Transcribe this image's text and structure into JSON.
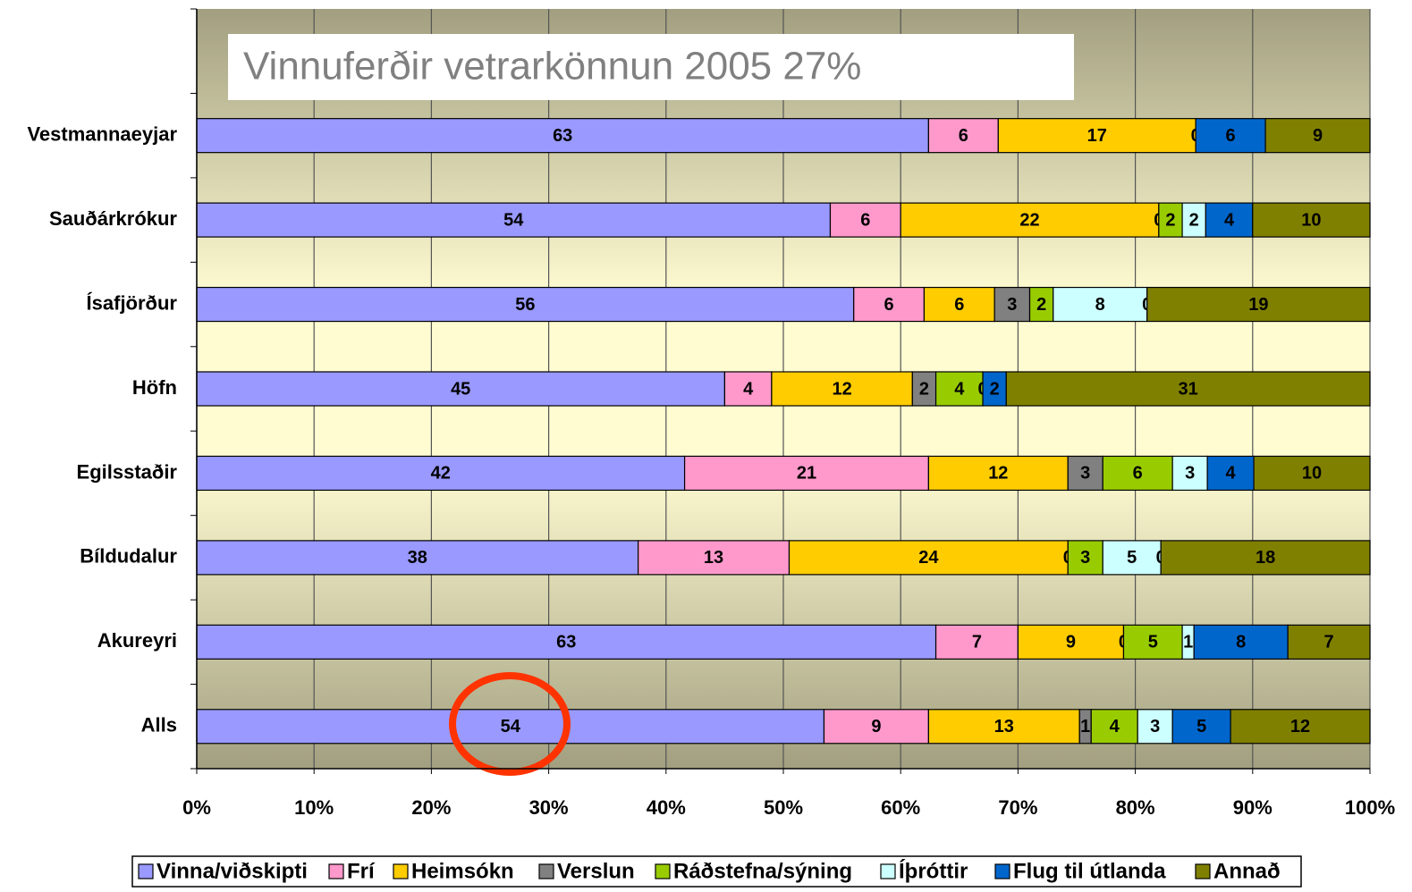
{
  "chart_data": {
    "type": "bar",
    "orientation": "horizontal",
    "stack": "percent",
    "title": "Vinnuferðir vetrarkönnun 2005 27%",
    "categories": [
      "Vestmannaeyjar",
      "Sauðárkrókur",
      "Ísafjörður",
      "Höfn",
      "Egilsstaðir",
      "Bíldudalur",
      "Akureyri",
      "Alls"
    ],
    "series": [
      {
        "name": "Vinna/viðskipti",
        "color": "#9999ff",
        "values": [
          63,
          54,
          56,
          45,
          42,
          38,
          63,
          54
        ]
      },
      {
        "name": "Frí",
        "color": "#ff99cc",
        "values": [
          6,
          6,
          6,
          4,
          21,
          13,
          7,
          9
        ]
      },
      {
        "name": "Heimsókn",
        "color": "#ffcc00",
        "values": [
          17,
          22,
          6,
          12,
          12,
          24,
          9,
          13
        ]
      },
      {
        "name": "Verslun",
        "color": "#808080",
        "values": [
          null,
          0,
          3,
          2,
          3,
          0,
          0,
          1
        ]
      },
      {
        "name": "Ráðstefna/sýning",
        "color": "#99cc00",
        "values": [
          null,
          2,
          2,
          4,
          6,
          3,
          5,
          4
        ]
      },
      {
        "name": "Íþróttir",
        "color": "#ccffff",
        "values": [
          0,
          2,
          8,
          0,
          3,
          5,
          1,
          3
        ]
      },
      {
        "name": "Flug til útlanda",
        "color": "#0066cc",
        "values": [
          6,
          4,
          0,
          2,
          4,
          0,
          8,
          5
        ]
      },
      {
        "name": "Annað",
        "color": "#808000",
        "values": [
          9,
          10,
          19,
          31,
          10,
          18,
          7,
          12
        ]
      }
    ],
    "xlim": [
      0,
      100
    ],
    "xticks": [
      {
        "value": 0,
        "label": "0%"
      },
      {
        "value": 10,
        "label": "10%"
      },
      {
        "value": 20,
        "label": "20%"
      },
      {
        "value": 30,
        "label": "30%"
      },
      {
        "value": 40,
        "label": "40%"
      },
      {
        "value": 50,
        "label": "50%"
      },
      {
        "value": 60,
        "label": "60%"
      },
      {
        "value": 70,
        "label": "70%"
      },
      {
        "value": 80,
        "label": "80%"
      },
      {
        "value": 90,
        "label": "90%"
      },
      {
        "value": 100,
        "label": "100%"
      }
    ],
    "grid": true,
    "legend": "bottom"
  }
}
